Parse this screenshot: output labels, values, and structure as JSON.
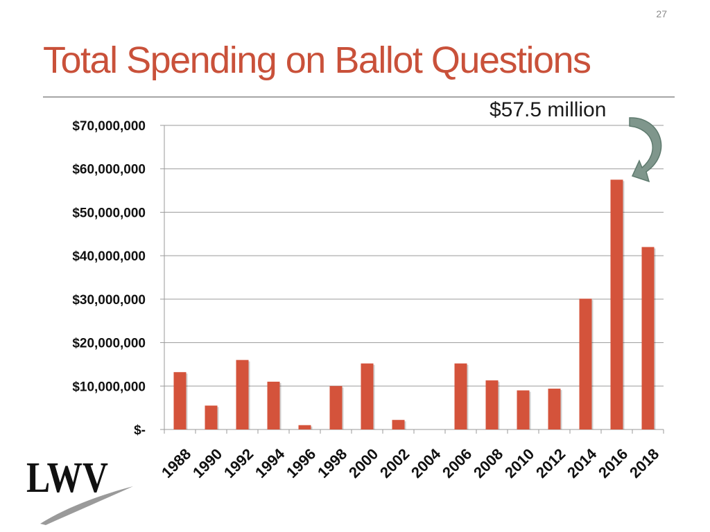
{
  "slide": {
    "number": "27",
    "title": "Total Spending on Ballot Questions",
    "title_color": "#c9513a",
    "annotation": "$57.5 million"
  },
  "logo": {
    "text": "LWV",
    "icon": "lwv-logo"
  },
  "colors": {
    "bar": "#d4533b",
    "grid": "#9a9a9a",
    "arrow": "#7f968c"
  },
  "chart_data": {
    "type": "bar",
    "title": "",
    "xlabel": "",
    "ylabel": "",
    "categories": [
      "1988",
      "1990",
      "1992",
      "1994",
      "1996",
      "1998",
      "2000",
      "2002",
      "2004",
      "2006",
      "2008",
      "2010",
      "2012",
      "2014",
      "2016",
      "2018"
    ],
    "values": [
      13200000,
      5500000,
      16000000,
      11000000,
      1000000,
      10000000,
      15200000,
      2200000,
      0,
      15200000,
      11300000,
      9000000,
      9400000,
      30100000,
      57500000,
      42000000
    ],
    "ylim": [
      0,
      70000000
    ],
    "yticks": [
      0,
      10000000,
      20000000,
      30000000,
      40000000,
      50000000,
      60000000,
      70000000
    ],
    "ytick_labels": [
      "$-",
      "$10,000,000",
      "$20,000,000",
      "$30,000,000",
      "$40,000,000",
      "$50,000,000",
      "$60,000,000",
      "$70,000,000"
    ],
    "grid": true,
    "legend": "none"
  }
}
